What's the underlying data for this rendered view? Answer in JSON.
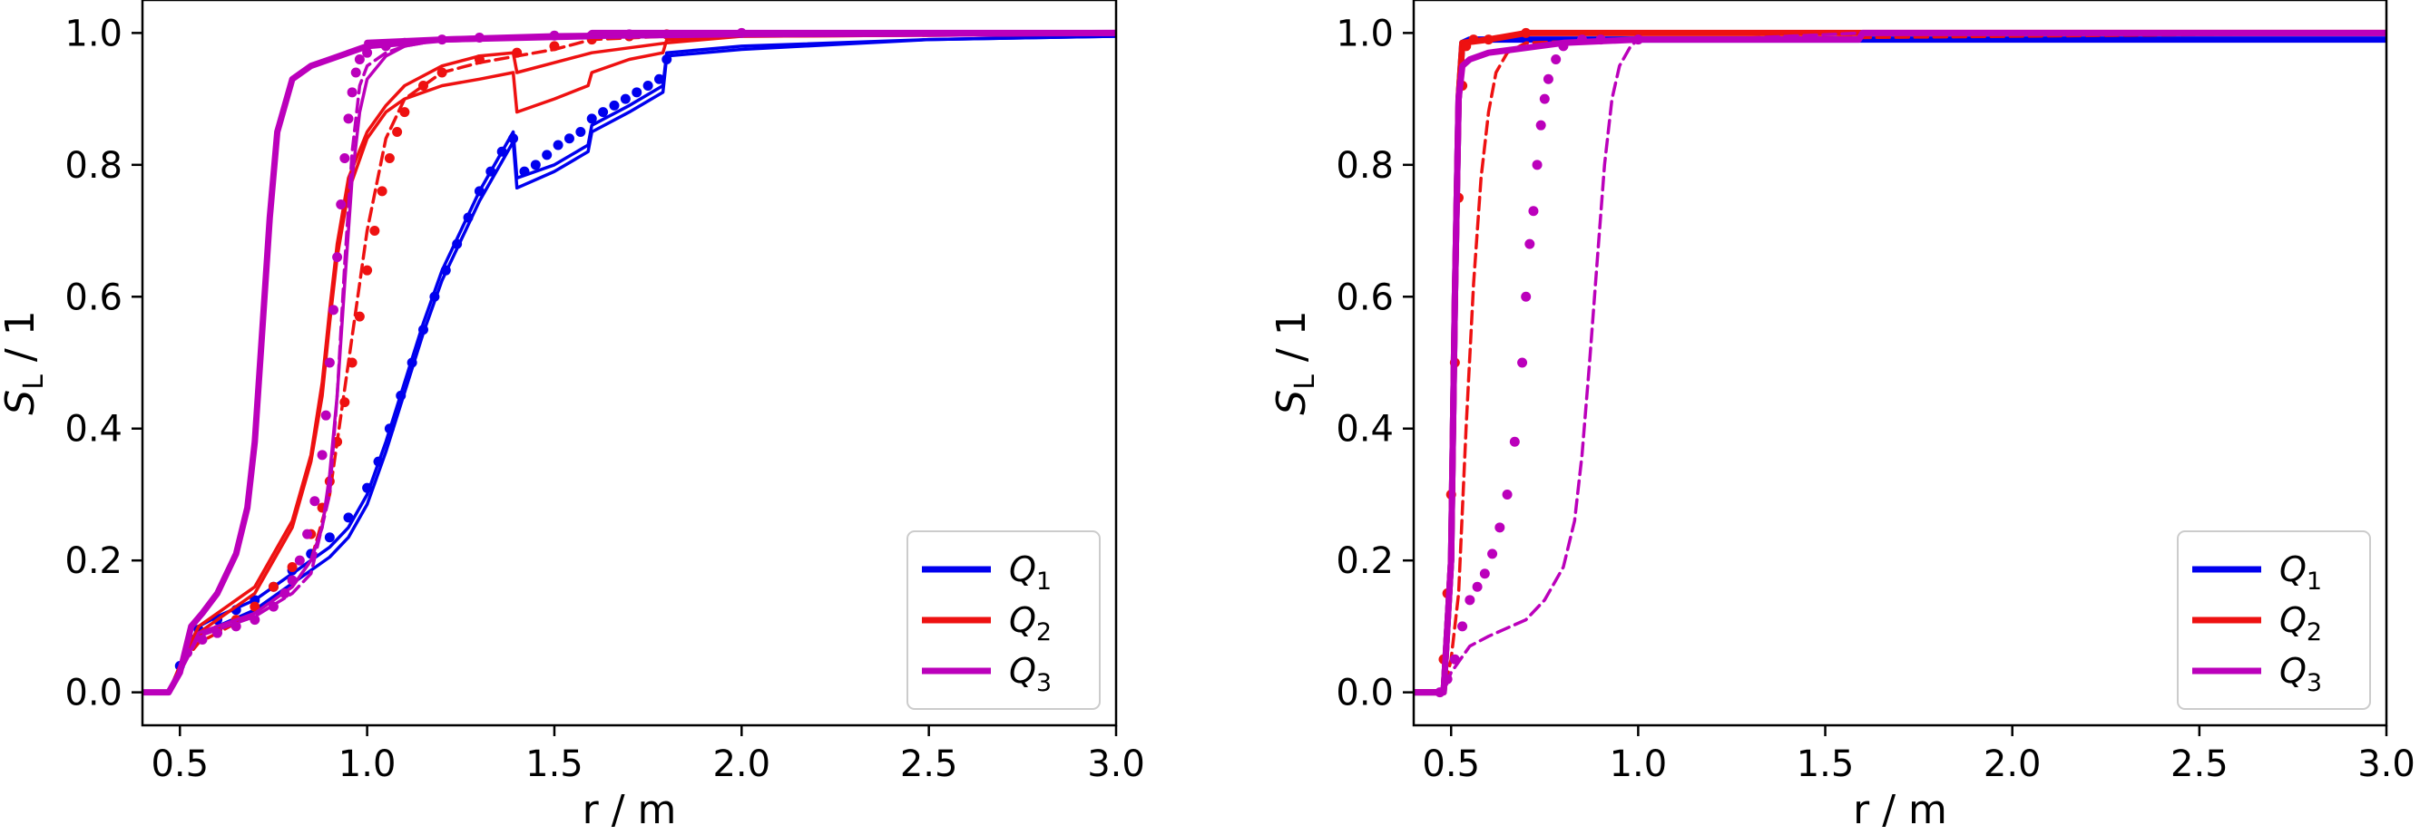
{
  "chart_data": [
    {
      "type": "line",
      "xlabel": "r / m",
      "ylabel": "S_L / 1",
      "xlim": [
        0.4,
        3.0
      ],
      "ylim": [
        -0.05,
        1.05
      ],
      "xticks": [
        "0.5",
        "1.0",
        "1.5",
        "2.0",
        "2.5",
        "3.0"
      ],
      "yticks": [
        "0.0",
        "0.2",
        "0.4",
        "0.6",
        "0.8",
        "1.0"
      ],
      "grid": false,
      "legend": "lower-right",
      "legend_entries": [
        {
          "label": "Q",
          "sub": "1",
          "color": "#0000ee"
        },
        {
          "label": "Q",
          "sub": "2",
          "color": "#ee1111"
        },
        {
          "label": "Q",
          "sub": "3",
          "color": "#bb00bb"
        }
      ],
      "series": [
        {
          "group": "Q1",
          "style": "thin",
          "color": "#0000ee",
          "x": [
            0.4,
            0.47,
            0.5,
            0.55,
            0.6,
            0.7,
            0.8,
            0.9,
            0.95,
            1.0,
            1.05,
            1.1,
            1.15,
            1.2,
            1.3,
            1.39,
            1.4,
            1.5,
            1.59,
            1.6,
            1.7,
            1.79,
            1.8,
            2.0,
            2.5,
            3.0
          ],
          "y": [
            0.0,
            0.0,
            0.04,
            0.1,
            0.115,
            0.14,
            0.18,
            0.22,
            0.25,
            0.3,
            0.38,
            0.47,
            0.56,
            0.64,
            0.76,
            0.85,
            0.78,
            0.8,
            0.83,
            0.86,
            0.89,
            0.92,
            0.97,
            0.98,
            0.99,
            0.995
          ]
        },
        {
          "group": "Q1",
          "style": "thin",
          "color": "#0000ee",
          "x": [
            0.4,
            0.47,
            0.5,
            0.55,
            0.6,
            0.7,
            0.8,
            0.9,
            0.95,
            1.0,
            1.05,
            1.1,
            1.15,
            1.2,
            1.3,
            1.39,
            1.4,
            1.5,
            1.59,
            1.6,
            1.7,
            1.79,
            1.8,
            2.0,
            2.5,
            3.0
          ],
          "y": [
            0.0,
            0.0,
            0.04,
            0.085,
            0.1,
            0.125,
            0.165,
            0.205,
            0.235,
            0.285,
            0.365,
            0.455,
            0.545,
            0.625,
            0.745,
            0.835,
            0.765,
            0.79,
            0.82,
            0.85,
            0.88,
            0.91,
            0.965,
            0.975,
            0.99,
            0.995
          ]
        },
        {
          "group": "Q1",
          "style": "dots",
          "color": "#0000ee",
          "x": [
            0.5,
            0.53,
            0.55,
            0.6,
            0.65,
            0.7,
            0.75,
            0.8,
            0.85,
            0.9,
            0.95,
            1.0,
            1.03,
            1.06,
            1.09,
            1.12,
            1.15,
            1.18,
            1.21,
            1.24,
            1.27,
            1.3,
            1.33,
            1.36,
            1.39,
            1.42,
            1.45,
            1.48,
            1.51,
            1.54,
            1.57,
            1.6,
            1.63,
            1.66,
            1.69,
            1.72,
            1.75,
            1.78,
            1.8
          ],
          "y": [
            0.04,
            0.08,
            0.095,
            0.11,
            0.125,
            0.14,
            0.16,
            0.185,
            0.21,
            0.235,
            0.265,
            0.31,
            0.35,
            0.4,
            0.45,
            0.5,
            0.55,
            0.6,
            0.64,
            0.68,
            0.72,
            0.76,
            0.79,
            0.82,
            0.84,
            0.79,
            0.8,
            0.815,
            0.83,
            0.84,
            0.85,
            0.87,
            0.88,
            0.89,
            0.9,
            0.91,
            0.92,
            0.93,
            0.96
          ]
        },
        {
          "group": "Q2",
          "style": "thin",
          "color": "#ee1111",
          "x": [
            0.4,
            0.47,
            0.5,
            0.55,
            0.6,
            0.7,
            0.8,
            0.85,
            0.88,
            0.9,
            0.92,
            0.95,
            1.0,
            1.05,
            1.1,
            1.2,
            1.3,
            1.39,
            1.4,
            1.45,
            1.5,
            1.59,
            1.6,
            1.7,
            1.79,
            1.8,
            2.0,
            3.0
          ],
          "y": [
            0.0,
            0.0,
            0.04,
            0.09,
            0.11,
            0.15,
            0.25,
            0.35,
            0.45,
            0.56,
            0.66,
            0.76,
            0.84,
            0.88,
            0.9,
            0.92,
            0.93,
            0.94,
            0.88,
            0.89,
            0.9,
            0.92,
            0.94,
            0.96,
            0.97,
            0.99,
            0.995,
            0.998
          ]
        },
        {
          "group": "Q2",
          "style": "thin",
          "color": "#ee1111",
          "x": [
            0.4,
            0.47,
            0.5,
            0.55,
            0.6,
            0.7,
            0.8,
            0.85,
            0.88,
            0.9,
            0.92,
            0.95,
            1.0,
            1.05,
            1.1,
            1.2,
            1.3,
            1.39,
            1.4,
            1.5,
            1.6,
            1.8,
            2.0,
            3.0
          ],
          "y": [
            0.0,
            0.0,
            0.04,
            0.1,
            0.12,
            0.16,
            0.26,
            0.36,
            0.47,
            0.58,
            0.68,
            0.78,
            0.85,
            0.89,
            0.92,
            0.95,
            0.965,
            0.97,
            0.94,
            0.955,
            0.97,
            0.985,
            0.995,
            0.998
          ]
        },
        {
          "group": "Q2",
          "style": "dashed",
          "color": "#ee1111",
          "x": [
            0.4,
            0.47,
            0.5,
            0.55,
            0.6,
            0.7,
            0.8,
            0.85,
            0.9,
            0.95,
            1.0,
            1.05,
            1.1,
            1.2,
            1.3,
            1.4,
            1.5,
            1.6,
            1.8,
            2.0,
            3.0
          ],
          "y": [
            0.0,
            0.0,
            0.04,
            0.075,
            0.09,
            0.12,
            0.16,
            0.2,
            0.3,
            0.5,
            0.7,
            0.84,
            0.9,
            0.94,
            0.955,
            0.965,
            0.975,
            0.99,
            0.995,
            0.998,
            1.0
          ]
        },
        {
          "group": "Q2",
          "style": "dots",
          "color": "#ee1111",
          "x": [
            0.55,
            0.6,
            0.65,
            0.7,
            0.75,
            0.8,
            0.85,
            0.88,
            0.9,
            0.92,
            0.94,
            0.96,
            0.98,
            1.0,
            1.02,
            1.04,
            1.06,
            1.08,
            1.1,
            1.15,
            1.2,
            1.3,
            1.4,
            1.5,
            1.6,
            1.7,
            1.8
          ],
          "y": [
            0.085,
            0.095,
            0.11,
            0.13,
            0.16,
            0.19,
            0.24,
            0.28,
            0.32,
            0.38,
            0.44,
            0.5,
            0.57,
            0.64,
            0.7,
            0.76,
            0.81,
            0.85,
            0.88,
            0.92,
            0.94,
            0.96,
            0.97,
            0.98,
            0.99,
            0.995,
            0.998
          ]
        },
        {
          "group": "Q3",
          "style": "thick",
          "color": "#bb00bb",
          "x": [
            0.4,
            0.47,
            0.5,
            0.53,
            0.56,
            0.6,
            0.65,
            0.68,
            0.7,
            0.72,
            0.74,
            0.76,
            0.8,
            0.85,
            0.9,
            0.95,
            1.0,
            1.2,
            1.5,
            2.0,
            3.0
          ],
          "y": [
            0.0,
            0.0,
            0.03,
            0.1,
            0.12,
            0.15,
            0.21,
            0.28,
            0.38,
            0.55,
            0.72,
            0.85,
            0.93,
            0.95,
            0.96,
            0.97,
            0.98,
            0.99,
            0.995,
            0.998,
            1.0
          ]
        },
        {
          "group": "Q3",
          "style": "thin",
          "color": "#bb00bb",
          "x": [
            0.4,
            0.47,
            0.5,
            0.55,
            0.6,
            0.7,
            0.8,
            0.85,
            0.88,
            0.9,
            0.92,
            0.94,
            0.96,
            0.98,
            1.0,
            1.05,
            1.1,
            1.2,
            1.5,
            2.0,
            3.0
          ],
          "y": [
            0.0,
            0.0,
            0.03,
            0.09,
            0.1,
            0.12,
            0.16,
            0.2,
            0.25,
            0.33,
            0.45,
            0.62,
            0.78,
            0.88,
            0.93,
            0.965,
            0.98,
            0.99,
            0.995,
            0.998,
            1.0
          ]
        },
        {
          "group": "Q3",
          "style": "dashed",
          "color": "#bb00bb",
          "x": [
            0.4,
            0.47,
            0.5,
            0.55,
            0.6,
            0.7,
            0.8,
            0.85,
            0.9,
            0.92,
            0.94,
            0.96,
            0.98,
            1.0,
            1.05,
            1.1,
            1.2,
            1.5,
            2.0,
            3.0
          ],
          "y": [
            0.0,
            0.0,
            0.03,
            0.085,
            0.095,
            0.115,
            0.15,
            0.18,
            0.3,
            0.45,
            0.65,
            0.82,
            0.92,
            0.95,
            0.97,
            0.98,
            0.99,
            0.995,
            0.998,
            1.0
          ]
        },
        {
          "group": "Q3",
          "style": "dots",
          "color": "#bb00bb",
          "x": [
            0.52,
            0.56,
            0.6,
            0.65,
            0.7,
            0.75,
            0.78,
            0.8,
            0.82,
            0.84,
            0.86,
            0.88,
            0.89,
            0.9,
            0.91,
            0.92,
            0.93,
            0.94,
            0.95,
            0.96,
            0.97,
            0.98,
            1.0,
            1.05,
            1.1,
            1.2,
            1.3,
            1.5,
            1.7,
            2.0
          ],
          "y": [
            0.06,
            0.08,
            0.09,
            0.1,
            0.11,
            0.13,
            0.15,
            0.17,
            0.2,
            0.24,
            0.29,
            0.36,
            0.42,
            0.5,
            0.58,
            0.66,
            0.74,
            0.81,
            0.87,
            0.91,
            0.94,
            0.96,
            0.97,
            0.98,
            0.985,
            0.99,
            0.993,
            0.996,
            0.998,
            1.0
          ]
        },
        {
          "group": "Q3",
          "style": "thick",
          "color": "#bb00bb",
          "x": [
            1.0,
            1.2,
            1.59,
            1.6,
            1.8,
            2.0,
            3.0
          ],
          "y": [
            0.985,
            0.99,
            0.995,
            1.0,
            1.0,
            1.0,
            1.0
          ]
        }
      ]
    },
    {
      "type": "line",
      "xlabel": "r / m",
      "ylabel": "S_L / 1",
      "xlim": [
        0.4,
        3.0
      ],
      "ylim": [
        -0.05,
        1.05
      ],
      "xticks": [
        "0.5",
        "1.0",
        "1.5",
        "2.0",
        "2.5",
        "3.0"
      ],
      "yticks": [
        "0.0",
        "0.2",
        "0.4",
        "0.6",
        "0.8",
        "1.0"
      ],
      "grid": false,
      "legend": "lower-right",
      "legend_entries": [
        {
          "label": "Q",
          "sub": "1",
          "color": "#0000ee"
        },
        {
          "label": "Q",
          "sub": "2",
          "color": "#ee1111"
        },
        {
          "label": "Q",
          "sub": "3",
          "color": "#bb00bb"
        }
      ],
      "series": [
        {
          "group": "Q1",
          "style": "thick",
          "color": "#0000ee",
          "x": [
            0.4,
            0.48,
            0.5,
            0.51,
            0.52,
            0.53,
            0.55,
            1.0,
            3.0
          ],
          "y": [
            0.0,
            0.0,
            0.2,
            0.6,
            0.9,
            0.985,
            0.99,
            0.99,
            0.99
          ]
        },
        {
          "group": "Q2",
          "style": "thick",
          "color": "#ee1111",
          "x": [
            0.4,
            0.48,
            0.5,
            0.51,
            0.52,
            0.53,
            0.6,
            0.7,
            1.0,
            3.0
          ],
          "y": [
            0.0,
            0.0,
            0.2,
            0.6,
            0.9,
            0.985,
            0.99,
            1.0,
            1.0,
            1.0
          ]
        },
        {
          "group": "Q2",
          "style": "dashed",
          "color": "#ee1111",
          "x": [
            0.4,
            0.48,
            0.5,
            0.52,
            0.54,
            0.56,
            0.58,
            0.6,
            0.62,
            0.65,
            0.7,
            1.0,
            3.0
          ],
          "y": [
            0.0,
            0.0,
            0.05,
            0.15,
            0.4,
            0.62,
            0.78,
            0.88,
            0.94,
            0.97,
            0.985,
            0.99,
            1.0
          ]
        },
        {
          "group": "Q2",
          "style": "dots",
          "color": "#ee1111",
          "x": [
            0.48,
            0.49,
            0.5,
            0.51,
            0.52,
            0.53,
            0.54,
            0.56,
            0.6,
            0.7
          ],
          "y": [
            0.05,
            0.15,
            0.3,
            0.5,
            0.75,
            0.92,
            0.98,
            0.99,
            0.99,
            1.0
          ]
        },
        {
          "group": "Q3",
          "style": "thick",
          "color": "#bb00bb",
          "x": [
            0.4,
            0.48,
            0.5,
            0.51,
            0.52,
            0.53,
            0.55,
            0.6,
            0.8,
            1.0,
            1.59,
            1.6,
            3.0
          ],
          "y": [
            0.0,
            0.0,
            0.2,
            0.6,
            0.9,
            0.95,
            0.96,
            0.97,
            0.985,
            0.99,
            0.99,
            1.0,
            1.0
          ]
        },
        {
          "group": "Q3",
          "style": "dashed",
          "color": "#bb00bb",
          "x": [
            0.4,
            0.48,
            0.5,
            0.55,
            0.6,
            0.7,
            0.75,
            0.8,
            0.83,
            0.85,
            0.87,
            0.89,
            0.91,
            0.93,
            0.95,
            0.98,
            1.0,
            1.2,
            1.6,
            3.0
          ],
          "y": [
            0.0,
            0.0,
            0.03,
            0.07,
            0.085,
            0.11,
            0.14,
            0.19,
            0.26,
            0.36,
            0.5,
            0.65,
            0.8,
            0.9,
            0.95,
            0.98,
            0.99,
            0.99,
            1.0,
            1.0
          ]
        },
        {
          "group": "Q3",
          "style": "dots",
          "color": "#bb00bb",
          "x": [
            0.47,
            0.49,
            0.51,
            0.53,
            0.55,
            0.57,
            0.59,
            0.61,
            0.63,
            0.65,
            0.67,
            0.69,
            0.7,
            0.71,
            0.72,
            0.73,
            0.74,
            0.75,
            0.76,
            0.78,
            0.8,
            0.85,
            0.9,
            1.0
          ],
          "y": [
            0.0,
            0.02,
            0.05,
            0.1,
            0.14,
            0.16,
            0.18,
            0.21,
            0.25,
            0.3,
            0.38,
            0.5,
            0.6,
            0.68,
            0.73,
            0.8,
            0.86,
            0.9,
            0.93,
            0.96,
            0.98,
            0.99,
            0.99,
            0.99
          ]
        }
      ]
    }
  ]
}
